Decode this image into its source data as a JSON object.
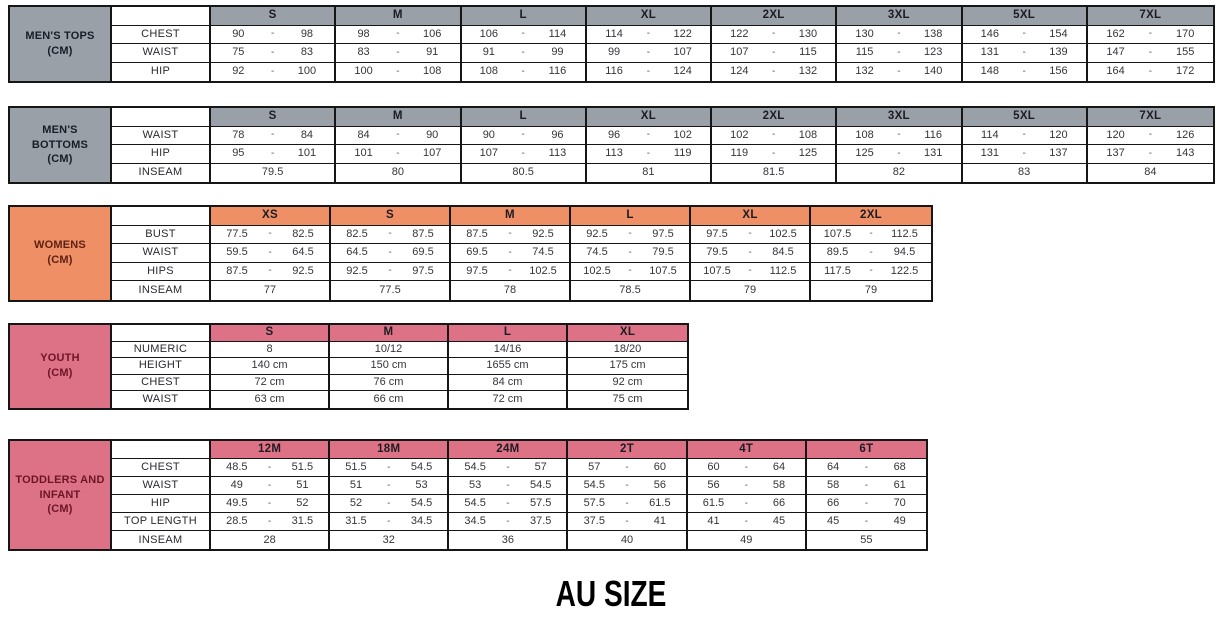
{
  "title": "AU SIZE",
  "range_separator": "-",
  "colors": {
    "gray": "#9aa0a8",
    "gray_text": "#171d27",
    "orange": "#ef8f66",
    "orange_text": "#5e2113",
    "rose": "#dd7287",
    "rose_text": "#6d1526",
    "border": "#161616"
  },
  "tables": [
    {
      "label": "MEN'S TOPS\n(CM)",
      "theme": "gray",
      "sizes": [
        "S",
        "M",
        "L",
        "XL",
        "2XL",
        "3XL",
        "5XL",
        "7XL"
      ],
      "rows": [
        {
          "label": "CHEST",
          "type": "range",
          "values": [
            [
              "90",
              "98"
            ],
            [
              "98",
              "106"
            ],
            [
              "106",
              "114"
            ],
            [
              "114",
              "122"
            ],
            [
              "122",
              "130"
            ],
            [
              "130",
              "138"
            ],
            [
              "146",
              "154"
            ],
            [
              "162",
              "170"
            ]
          ]
        },
        {
          "label": "WAIST",
          "type": "range",
          "values": [
            [
              "75",
              "83"
            ],
            [
              "83",
              "91"
            ],
            [
              "91",
              "99"
            ],
            [
              "99",
              "107"
            ],
            [
              "107",
              "115"
            ],
            [
              "115",
              "123"
            ],
            [
              "131",
              "139"
            ],
            [
              "147",
              "155"
            ]
          ]
        },
        {
          "label": "HIP",
          "type": "range",
          "values": [
            [
              "92",
              "100"
            ],
            [
              "100",
              "108"
            ],
            [
              "108",
              "116"
            ],
            [
              "116",
              "124"
            ],
            [
              "124",
              "132"
            ],
            [
              "132",
              "140"
            ],
            [
              "148",
              "156"
            ],
            [
              "164",
              "172"
            ]
          ]
        }
      ]
    },
    {
      "label": "MEN'S\nBOTTOMS\n(CM)",
      "theme": "gray",
      "sizes": [
        "S",
        "M",
        "L",
        "XL",
        "2XL",
        "3XL",
        "5XL",
        "7XL"
      ],
      "rows": [
        {
          "label": "WAIST",
          "type": "range",
          "values": [
            [
              "78",
              "84"
            ],
            [
              "84",
              "90"
            ],
            [
              "90",
              "96"
            ],
            [
              "96",
              "102"
            ],
            [
              "102",
              "108"
            ],
            [
              "108",
              "116"
            ],
            [
              "114",
              "120"
            ],
            [
              "120",
              "126"
            ]
          ]
        },
        {
          "label": "HIP",
          "type": "range",
          "values": [
            [
              "95",
              "101"
            ],
            [
              "101",
              "107"
            ],
            [
              "107",
              "113"
            ],
            [
              "113",
              "119"
            ],
            [
              "119",
              "125"
            ],
            [
              "125",
              "131"
            ],
            [
              "131",
              "137"
            ],
            [
              "137",
              "143"
            ]
          ]
        },
        {
          "label": "INSEAM",
          "type": "single",
          "values": [
            "79.5",
            "80",
            "80.5",
            "81",
            "81.5",
            "82",
            "83",
            "84"
          ]
        }
      ]
    },
    {
      "label": "WOMENS\n(CM)",
      "theme": "orange",
      "sizes": [
        "XS",
        "S",
        "M",
        "L",
        "XL",
        "2XL"
      ],
      "rows": [
        {
          "label": "BUST",
          "type": "range",
          "values": [
            [
              "77.5",
              "82.5"
            ],
            [
              "82.5",
              "87.5"
            ],
            [
              "87.5",
              "92.5"
            ],
            [
              "92.5",
              "97.5"
            ],
            [
              "97.5",
              "102.5"
            ],
            [
              "107.5",
              "112.5"
            ]
          ]
        },
        {
          "label": "WAIST",
          "type": "range",
          "values": [
            [
              "59.5",
              "64.5"
            ],
            [
              "64.5",
              "69.5"
            ],
            [
              "69.5",
              "74.5"
            ],
            [
              "74.5",
              "79.5"
            ],
            [
              "79.5",
              "84.5"
            ],
            [
              "89.5",
              "94.5"
            ]
          ]
        },
        {
          "label": "HIPS",
          "type": "range",
          "values": [
            [
              "87.5",
              "92.5"
            ],
            [
              "92.5",
              "97.5"
            ],
            [
              "97.5",
              "102.5"
            ],
            [
              "102.5",
              "107.5"
            ],
            [
              "107.5",
              "112.5"
            ],
            [
              "117.5",
              "122.5"
            ]
          ]
        },
        {
          "label": "INSEAM",
          "type": "single",
          "values": [
            "77",
            "77.5",
            "78",
            "78.5",
            "79",
            "79"
          ]
        }
      ]
    },
    {
      "label": "YOUTH\n(CM)",
      "theme": "rose",
      "sizes": [
        "S",
        "M",
        "L",
        "XL"
      ],
      "rows": [
        {
          "label": "NUMERIC",
          "type": "single",
          "values": [
            "8",
            "10/12",
            "14/16",
            "18/20"
          ]
        },
        {
          "label": "HEIGHT",
          "type": "single",
          "values": [
            "140 cm",
            "150 cm",
            "1655 cm",
            "175 cm"
          ]
        },
        {
          "label": "CHEST",
          "type": "single",
          "values": [
            "72 cm",
            "76 cm",
            "84 cm",
            "92 cm"
          ]
        },
        {
          "label": "WAIST",
          "type": "single",
          "values": [
            "63 cm",
            "66 cm",
            "72 cm",
            "75 cm"
          ]
        }
      ]
    },
    {
      "label": "TODDLERS AND\nINFANT\n(CM)",
      "theme": "rose",
      "sizes": [
        "12M",
        "18M",
        "24M",
        "2T",
        "4T",
        "6T"
      ],
      "rows": [
        {
          "label": "CHEST",
          "type": "range",
          "values": [
            [
              "48.5",
              "51.5"
            ],
            [
              "51.5",
              "54.5"
            ],
            [
              "54.5",
              "57"
            ],
            [
              "57",
              "60"
            ],
            [
              "60",
              "64"
            ],
            [
              "64",
              "68"
            ]
          ]
        },
        {
          "label": "WAIST",
          "type": "range",
          "values": [
            [
              "49",
              "51"
            ],
            [
              "51",
              "53"
            ],
            [
              "53",
              "54.5"
            ],
            [
              "54.5",
              "56"
            ],
            [
              "56",
              "58"
            ],
            [
              "58",
              "61"
            ]
          ]
        },
        {
          "label": "HIP",
          "type": "range",
          "values": [
            [
              "49.5",
              "52"
            ],
            [
              "52",
              "54.5"
            ],
            [
              "54.5",
              "57.5"
            ],
            [
              "57.5",
              "61.5"
            ],
            [
              "61.5",
              "66"
            ],
            [
              "66",
              "70"
            ]
          ]
        },
        {
          "label": "TOP LENGTH",
          "type": "range",
          "values": [
            [
              "28.5",
              "31.5"
            ],
            [
              "31.5",
              "34.5"
            ],
            [
              "34.5",
              "37.5"
            ],
            [
              "37.5",
              "41"
            ],
            [
              "41",
              "45"
            ],
            [
              "45",
              "49"
            ]
          ]
        },
        {
          "label": "INSEAM",
          "type": "single",
          "values": [
            "28",
            "32",
            "36",
            "40",
            "49",
            "55"
          ]
        }
      ]
    }
  ]
}
